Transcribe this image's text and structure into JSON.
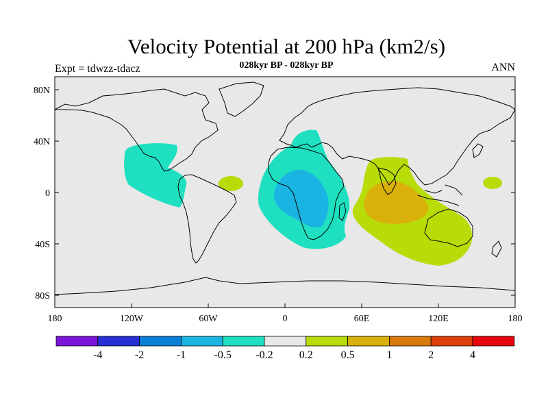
{
  "map": {
    "title": "Velocity Potential at 200 hPa (km2/s)",
    "subtitle": "028kyr BP - 028kyr BP",
    "left_label": "Expt = tdwzz-tdacz",
    "right_label": "ANN",
    "lat_ticks": [
      "80N",
      "40N",
      "0",
      "40S",
      "80S"
    ],
    "lon_ticks": [
      "180",
      "120W",
      "60W",
      "0",
      "60E",
      "120E",
      "180"
    ]
  },
  "colorbar": {
    "labels": [
      "-4",
      "-2",
      "-1",
      "-0.5",
      "-0.2",
      "0.2",
      "0.5",
      "1",
      "2",
      "4"
    ],
    "colors": [
      "#7b15d8",
      "#2630d6",
      "#0a7fd6",
      "#1ab4e3",
      "#1ee0c0",
      "#e8e8e8",
      "#b7dc08",
      "#d9b10a",
      "#d9780b",
      "#dc3f0b",
      "#e8060e"
    ]
  },
  "colors": {
    "land_ocean_bg": "#e8e8e8",
    "neg_light": "#1ee0c0",
    "neg_medium": "#1ab4e3",
    "pos_light": "#b7dc08",
    "pos_medium": "#d9b10a"
  }
}
